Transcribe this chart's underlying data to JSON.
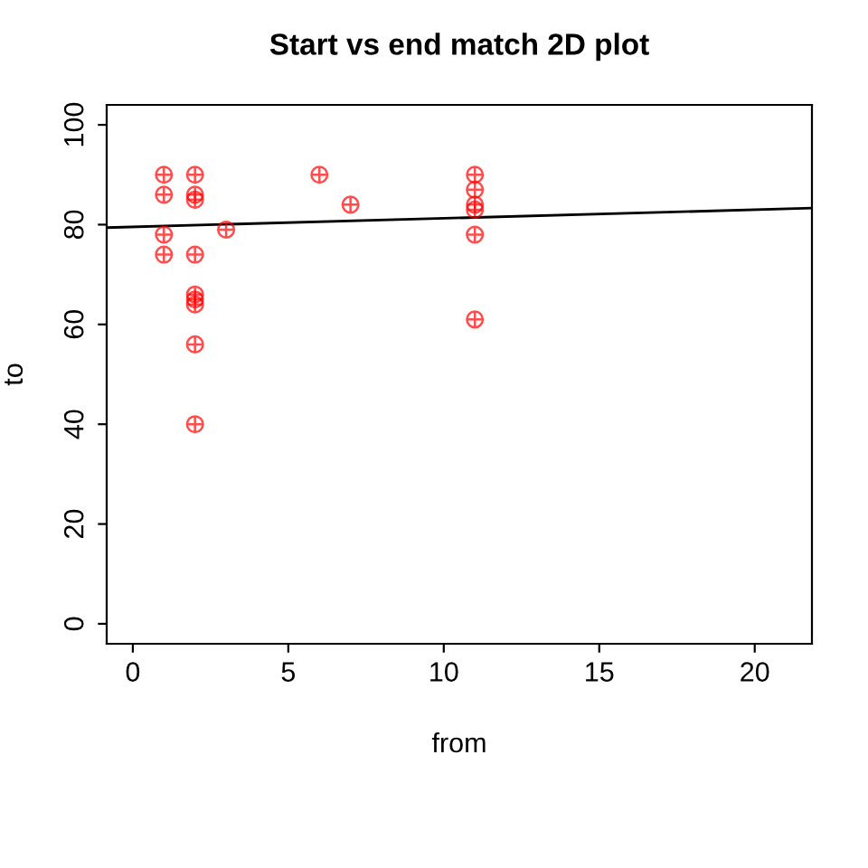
{
  "chart_data": {
    "type": "scatter",
    "title": "Start vs end match 2D plot",
    "xlabel": "from",
    "ylabel": "to",
    "xlim": [
      -0.84,
      21.84
    ],
    "ylim": [
      -4,
      104
    ],
    "xticks": [
      0,
      5,
      10,
      15,
      20
    ],
    "yticks": [
      0,
      20,
      40,
      60,
      80,
      100
    ],
    "grid": false,
    "legend": false,
    "series": [
      {
        "color": "#ff0000",
        "x": [
          1,
          1,
          1,
          1,
          2,
          2,
          2,
          2,
          2,
          2,
          2,
          2,
          2,
          3,
          6,
          7,
          11,
          11,
          11,
          11,
          11,
          11
        ],
        "values": [
          90,
          86,
          78,
          74,
          90,
          86,
          85,
          74,
          66,
          65,
          64,
          56,
          40,
          79,
          90,
          84,
          90,
          87,
          84,
          83,
          78,
          61
        ]
      },
      {
        "type": "line",
        "color": "#000000",
        "line_style": "solid",
        "marker": "none",
        "x": [
          -0.84,
          21.84
        ],
        "values": [
          79.4,
          83.3
        ]
      }
    ]
  }
}
